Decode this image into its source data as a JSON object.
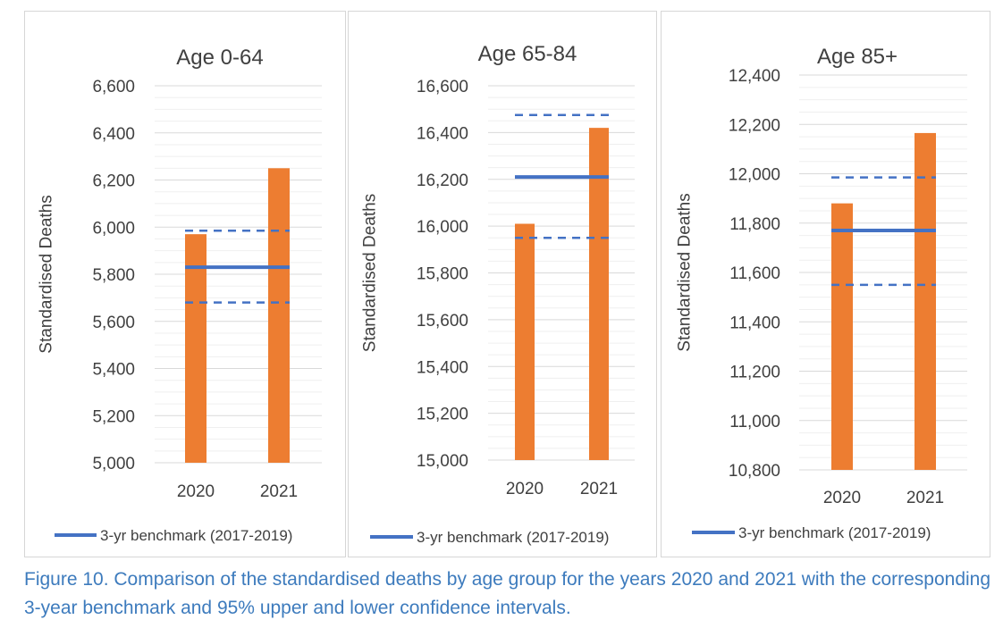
{
  "colors": {
    "bar": "#ed7d31",
    "benchmark": "#4472c4",
    "grid_major": "#d9d9d9",
    "grid_minor": "#efefef",
    "text": "#404040",
    "caption": "#3d7bbd"
  },
  "chart_data": [
    {
      "type": "bar",
      "title": "Age 0-64",
      "ylabel": "Standardised Deaths",
      "xlabel": "",
      "categories": [
        "2020",
        "2021"
      ],
      "values": [
        5970,
        6250
      ],
      "ylim": [
        5000,
        6600
      ],
      "yticks": [
        5000,
        5200,
        5400,
        5600,
        5800,
        6000,
        6200,
        6400,
        6600
      ],
      "ytick_labels": [
        "5,000",
        "5,200",
        "5,400",
        "5,600",
        "5,800",
        "6,000",
        "6,200",
        "6,400",
        "6,600"
      ],
      "benchmark": 5830,
      "ci_upper": 5985,
      "ci_lower": 5680,
      "legend": "3-yr benchmark (2017-2019)",
      "grid": true,
      "legend_position": "bottom"
    },
    {
      "type": "bar",
      "title": "Age 65-84",
      "ylabel": "Standardised Deaths",
      "xlabel": "",
      "categories": [
        "2020",
        "2021"
      ],
      "values": [
        16010,
        16420
      ],
      "ylim": [
        15000,
        16600
      ],
      "yticks": [
        15000,
        15200,
        15400,
        15600,
        15800,
        16000,
        16200,
        16400,
        16600
      ],
      "ytick_labels": [
        "15,000",
        "15,200",
        "15,400",
        "15,600",
        "15,800",
        "16,000",
        "16,200",
        "16,400",
        "16,600"
      ],
      "benchmark": 16210,
      "ci_upper": 16475,
      "ci_lower": 15950,
      "legend": "3-yr benchmark (2017-2019)",
      "grid": true,
      "legend_position": "bottom"
    },
    {
      "type": "bar",
      "title": "Age 85+",
      "ylabel": "Standardised Deaths",
      "xlabel": "",
      "categories": [
        "2020",
        "2021"
      ],
      "values": [
        11880,
        12165
      ],
      "ylim": [
        10800,
        12400
      ],
      "yticks": [
        10800,
        11000,
        11200,
        11400,
        11600,
        11800,
        12000,
        12200,
        12400
      ],
      "ytick_labels": [
        "10,800",
        "11,000",
        "11,200",
        "11,400",
        "11,600",
        "11,800",
        "12,000",
        "12,200",
        "12,400"
      ],
      "benchmark": 11770,
      "ci_upper": 11985,
      "ci_lower": 11550,
      "legend": "3-yr benchmark (2017-2019)",
      "grid": true,
      "legend_position": "bottom"
    }
  ],
  "caption": "Figure 10. Comparison of the standardised deaths by age group for the years 2020 and 2021 with the corresponding 3-year benchmark and 95% upper and lower confidence intervals."
}
